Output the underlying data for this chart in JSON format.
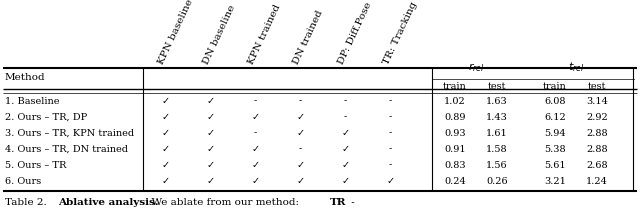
{
  "col_headers_rotated": [
    "KPN baseline",
    "DN baseline",
    "KPN trained",
    "DN trained",
    "DP: Diff.Pose",
    "TR: Tracking"
  ],
  "metric_headers": [
    "$r_{rel}$",
    "$t_{rel}$"
  ],
  "sub_headers": [
    "train",
    "test",
    "train",
    "test"
  ],
  "row_labels": [
    "1. Baseline",
    "2. Ours – TR, DP",
    "3. Ours – TR, KPN trained",
    "4. Ours – TR, DN trained",
    "5. Ours – TR",
    "6. Ours"
  ],
  "checks": [
    [
      true,
      true,
      false,
      false,
      false,
      false
    ],
    [
      true,
      true,
      true,
      true,
      false,
      false
    ],
    [
      true,
      true,
      false,
      true,
      true,
      false
    ],
    [
      true,
      true,
      true,
      false,
      true,
      false
    ],
    [
      true,
      true,
      true,
      true,
      true,
      false
    ],
    [
      true,
      true,
      true,
      true,
      true,
      true
    ]
  ],
  "values": [
    [
      1.02,
      1.63,
      6.08,
      3.14
    ],
    [
      0.89,
      1.43,
      6.12,
      2.92
    ],
    [
      0.93,
      1.61,
      5.94,
      2.88
    ],
    [
      0.91,
      1.58,
      5.38,
      2.88
    ],
    [
      0.83,
      1.56,
      5.61,
      2.68
    ],
    [
      0.24,
      0.26,
      3.21,
      1.24
    ]
  ],
  "bg_color": "#ffffff",
  "text_color": "#000000",
  "line_color": "#000000",
  "caption_normal": "Table 2.  ",
  "caption_bold": "Ablative analysis.",
  "caption_rest": "  We ablate from our method: ",
  "caption_bold2": "TR",
  "caption_end": " -"
}
